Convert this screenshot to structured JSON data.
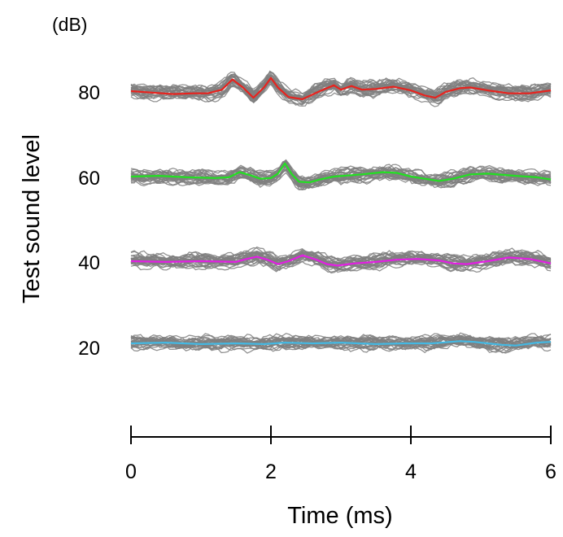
{
  "chart_data": {
    "type": "line",
    "title": "",
    "xlabel": "Time (ms)",
    "ylabel": "Test sound level",
    "y_unit": "(dB)",
    "xlim": [
      0,
      6
    ],
    "x_ticks": [
      "0",
      "2",
      "4",
      "6"
    ],
    "y_ticks": [
      "80",
      "60",
      "40",
      "20"
    ],
    "grid": false,
    "legend": "none",
    "gray_trace_color": "#7f7f7f",
    "series": [
      {
        "level_label": "80",
        "color": "#e8231e",
        "x": [
          0,
          0.3,
          0.6,
          0.9,
          1.1,
          1.3,
          1.45,
          1.6,
          1.75,
          1.9,
          2.0,
          2.1,
          2.25,
          2.45,
          2.7,
          2.9,
          3.0,
          3.15,
          3.3,
          3.5,
          3.75,
          4.0,
          4.2,
          4.35,
          4.5,
          4.7,
          4.85,
          5.1,
          5.4,
          5.7,
          6.0
        ],
        "y": [
          0,
          -0.2,
          -0.4,
          -0.3,
          -0.3,
          0.2,
          1.6,
          0.5,
          -0.9,
          0.5,
          1.8,
          0.5,
          -0.8,
          -1.1,
          0,
          0.8,
          0.2,
          0.7,
          0.2,
          0.3,
          0.6,
          0.1,
          -0.6,
          -0.9,
          -0.1,
          0.4,
          0.5,
          0.1,
          -0.3,
          -0.3,
          0.1
        ]
      },
      {
        "level_label": "60",
        "color": "#22e022",
        "x": [
          0,
          0.4,
          0.8,
          1.2,
          1.4,
          1.55,
          1.7,
          1.85,
          2.0,
          2.1,
          2.2,
          2.3,
          2.4,
          2.55,
          2.7,
          2.9,
          3.3,
          3.6,
          3.8,
          4.0,
          4.2,
          4.4,
          4.6,
          4.85,
          5.1,
          5.5,
          5.8,
          6.0
        ],
        "y": [
          0,
          0.1,
          -0.1,
          -0.2,
          -0.1,
          0.6,
          0.2,
          -0.3,
          -0.2,
          0.4,
          1.8,
          0.3,
          -0.7,
          -0.8,
          -0.4,
          0,
          0.3,
          0.6,
          0.5,
          0,
          -0.3,
          -0.6,
          -0.3,
          0.3,
          0.4,
          0.1,
          -0.1,
          -0.4
        ]
      },
      {
        "level_label": "40",
        "color": "#e31ee3",
        "x": [
          0,
          0.5,
          1.0,
          1.5,
          1.65,
          1.8,
          1.95,
          2.1,
          2.25,
          2.45,
          2.65,
          2.8,
          2.95,
          3.2,
          3.5,
          3.8,
          4.1,
          4.4,
          4.6,
          4.8,
          5.1,
          5.4,
          5.7,
          6.0
        ],
        "y": [
          0,
          -0.1,
          0,
          -0.1,
          0.3,
          0.6,
          0.2,
          -0.4,
          0,
          0.8,
          0.2,
          -0.4,
          -0.6,
          -0.3,
          -0.1,
          0.2,
          0.3,
          0.1,
          -0.3,
          -0.4,
          0,
          0.5,
          0.3,
          -0.3
        ]
      },
      {
        "level_label": "20",
        "color": "#44b8e2",
        "x": [
          0,
          0.5,
          1.0,
          1.5,
          1.9,
          2.2,
          2.6,
          3.0,
          3.5,
          3.9,
          4.3,
          4.7,
          4.9,
          5.1,
          5.3,
          5.5,
          5.8,
          6.0
        ],
        "y": [
          0,
          0.1,
          -0.1,
          0,
          -0.1,
          0.1,
          0,
          0.1,
          -0.1,
          0,
          0,
          0.3,
          0.2,
          0,
          -0.2,
          -0.3,
          0.1,
          0.2
        ]
      }
    ]
  }
}
